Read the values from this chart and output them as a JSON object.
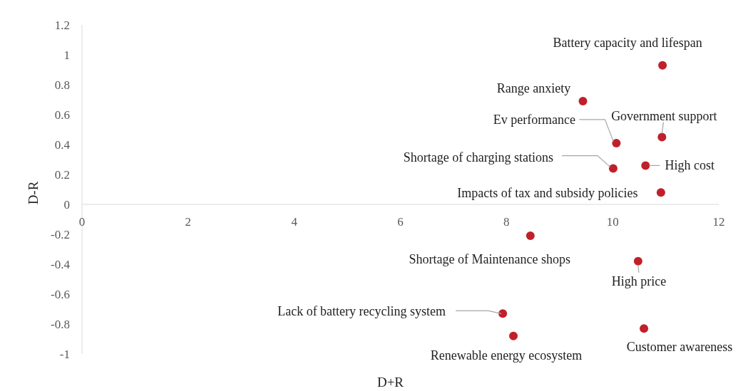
{
  "chart_data": {
    "type": "scatter",
    "xlabel": "D+R",
    "ylabel": "D-R",
    "xlim": [
      0,
      12
    ],
    "xticks": [
      0,
      2,
      4,
      6,
      8,
      10,
      12
    ],
    "ylim": [
      -1,
      1.2
    ],
    "yticks": [
      -1,
      -0.8,
      -0.6,
      -0.4,
      -0.2,
      0,
      0.2,
      0.4,
      0.6,
      0.8,
      1,
      1.2
    ],
    "grid": false,
    "marker": "circle",
    "series": [
      {
        "color": "#c0202a",
        "x": [
          10.94,
          9.44,
          10.07,
          10.93,
          10.01,
          10.62,
          10.91,
          8.45,
          10.48,
          7.93,
          8.13,
          10.59
        ],
        "values": [
          0.93,
          0.69,
          0.41,
          0.45,
          0.24,
          0.26,
          0.08,
          -0.21,
          -0.38,
          -0.73,
          -0.88,
          -0.83
        ]
      }
    ],
    "annotations": [
      {
        "text": "Battery capacity and lifespan",
        "x": 10.94,
        "y": 0.93
      },
      {
        "text": "Range anxiety",
        "x": 9.44,
        "y": 0.69
      },
      {
        "text": "Ev performance",
        "x": 10.07,
        "y": 0.41
      },
      {
        "text": "Government support",
        "x": 10.93,
        "y": 0.45
      },
      {
        "text": "Shortage of charging stations",
        "x": 10.01,
        "y": 0.24
      },
      {
        "text": "High cost",
        "x": 10.62,
        "y": 0.26
      },
      {
        "text": "Impacts of tax and subsidy policies",
        "x": 10.91,
        "y": 0.08
      },
      {
        "text": "Shortage of Maintenance shops",
        "x": 8.45,
        "y": -0.21
      },
      {
        "text": "High price",
        "x": 10.48,
        "y": -0.38
      },
      {
        "text": "Lack of battery recycling system",
        "x": 7.93,
        "y": -0.73
      },
      {
        "text": "Renewable energy ecosystem",
        "x": 8.13,
        "y": -0.88
      },
      {
        "text": "Customer awareness",
        "x": 10.59,
        "y": -0.83
      }
    ]
  }
}
